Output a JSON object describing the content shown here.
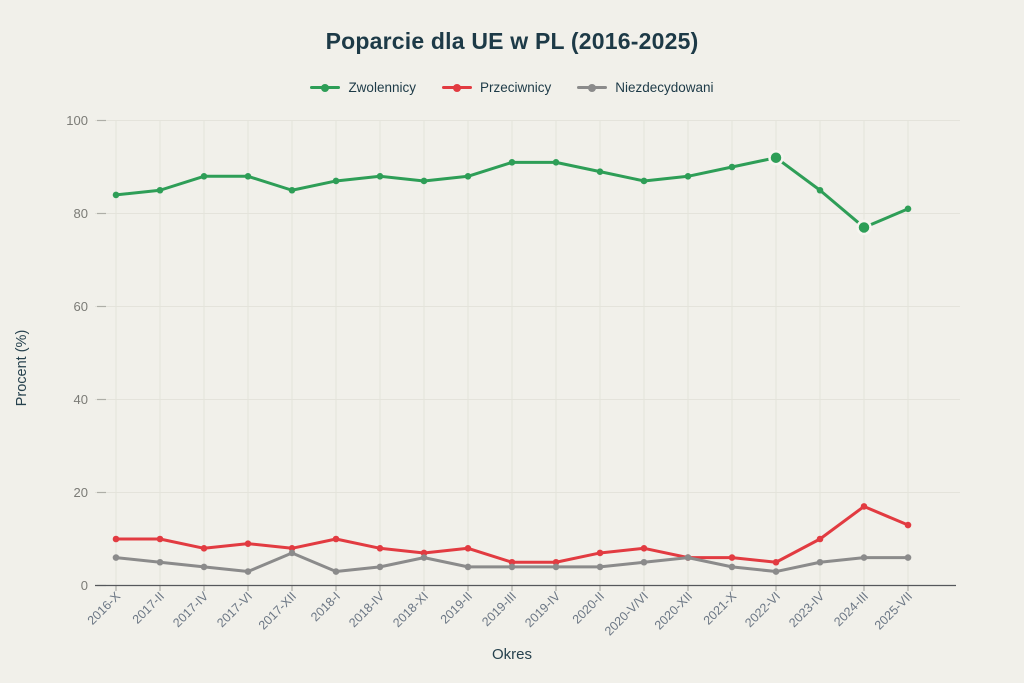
{
  "title": "Poparcie dla UE w PL (2016-2025)",
  "colors": {
    "background": "#f1f0ea",
    "title_text": "#1d3a47",
    "axis_line": "#55575b",
    "gridline": "#e4e3db",
    "tick_mark": "#aeaea7",
    "y_tick_label": "#7b7b76",
    "x_tick_label": "#6b7684",
    "axis_title_text": "#27424e"
  },
  "chart_data": {
    "type": "line",
    "title": "Poparcie dla UE w PL (2016-2025)",
    "xlabel": "Okres",
    "ylabel": "Procent (%)",
    "ylim": [
      0,
      100
    ],
    "yticks": [
      0,
      20,
      40,
      60,
      80,
      100
    ],
    "grid": true,
    "legend_position": "top",
    "categories": [
      "2016-X",
      "2017-II",
      "2017-IV",
      "2017-VI",
      "2017-XII",
      "2018-I",
      "2018-IV",
      "2018-XI",
      "2019-II",
      "2019-III",
      "2019-IV",
      "2020-II",
      "2020-V/VI",
      "2020-XII",
      "2021-X",
      "2022-VI",
      "2023-IV",
      "2024-III",
      "2025-VII"
    ],
    "series": [
      {
        "name": "Zwolennicy",
        "color": "#2e9e57",
        "values": [
          84,
          85,
          88,
          88,
          85,
          87,
          88,
          87,
          88,
          91,
          91,
          89,
          87,
          88,
          90,
          92,
          85,
          77,
          81
        ],
        "highlight_categories": [
          "2022-VI",
          "2024-III"
        ]
      },
      {
        "name": "Przeciwnicy",
        "color": "#e23b41",
        "values": [
          10,
          10,
          8,
          9,
          8,
          10,
          8,
          7,
          8,
          5,
          5,
          7,
          8,
          6,
          6,
          5,
          10,
          17,
          13
        ],
        "highlight_categories": []
      },
      {
        "name": "Niezdecydowani",
        "color": "#8b8b8b",
        "values": [
          6,
          5,
          4,
          3,
          7,
          3,
          4,
          6,
          4,
          4,
          4,
          4,
          5,
          6,
          4,
          3,
          5,
          6,
          6
        ],
        "highlight_categories": []
      }
    ]
  }
}
